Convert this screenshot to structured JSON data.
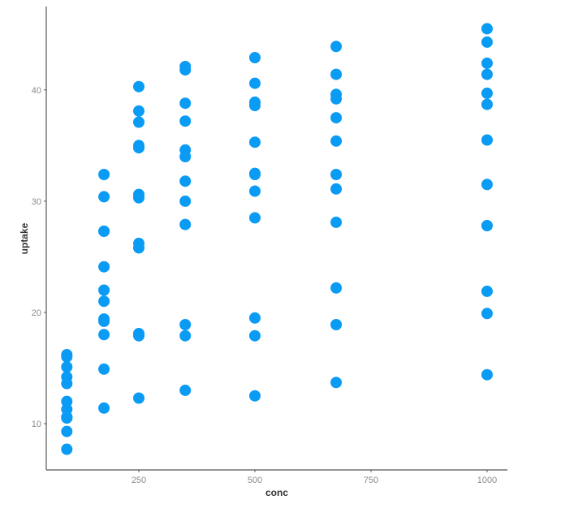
{
  "chart_data": {
    "type": "scatter",
    "title": "",
    "xlabel": "conc",
    "ylabel": "uptake",
    "xlim": [
      50.7,
      1043.7
    ],
    "ylim": [
      5.84,
      47.5
    ],
    "x_ticks": [
      250,
      500,
      750,
      1000
    ],
    "y_ticks": [
      10,
      20,
      30,
      40
    ],
    "grid": false,
    "legend": null,
    "point_color": "#0a9bf5",
    "axis_color": "#555555",
    "tick_label_color": "#8a8a8a",
    "points": [
      {
        "x": 95,
        "y": 16.0
      },
      {
        "x": 95,
        "y": 13.6
      },
      {
        "x": 95,
        "y": 16.2
      },
      {
        "x": 95,
        "y": 14.2
      },
      {
        "x": 95,
        "y": 9.3
      },
      {
        "x": 95,
        "y": 15.1
      },
      {
        "x": 95,
        "y": 10.6
      },
      {
        "x": 95,
        "y": 12.0
      },
      {
        "x": 95,
        "y": 11.3
      },
      {
        "x": 95,
        "y": 10.5
      },
      {
        "x": 95,
        "y": 7.7
      },
      {
        "x": 95,
        "y": 10.6
      },
      {
        "x": 175,
        "y": 30.4
      },
      {
        "x": 175,
        "y": 27.3
      },
      {
        "x": 175,
        "y": 32.4
      },
      {
        "x": 175,
        "y": 24.1
      },
      {
        "x": 175,
        "y": 21.0
      },
      {
        "x": 175,
        "y": 27.3
      },
      {
        "x": 175,
        "y": 19.4
      },
      {
        "x": 175,
        "y": 22.0
      },
      {
        "x": 175,
        "y": 19.2
      },
      {
        "x": 175,
        "y": 11.4
      },
      {
        "x": 175,
        "y": 18.0
      },
      {
        "x": 175,
        "y": 14.9
      },
      {
        "x": 250,
        "y": 34.8
      },
      {
        "x": 250,
        "y": 37.1
      },
      {
        "x": 250,
        "y": 40.3
      },
      {
        "x": 250,
        "y": 30.3
      },
      {
        "x": 250,
        "y": 38.1
      },
      {
        "x": 250,
        "y": 35.0
      },
      {
        "x": 250,
        "y": 25.8
      },
      {
        "x": 250,
        "y": 30.6
      },
      {
        "x": 250,
        "y": 26.2
      },
      {
        "x": 250,
        "y": 12.3
      },
      {
        "x": 250,
        "y": 17.9
      },
      {
        "x": 250,
        "y": 18.1
      },
      {
        "x": 350,
        "y": 37.2
      },
      {
        "x": 350,
        "y": 41.8
      },
      {
        "x": 350,
        "y": 42.1
      },
      {
        "x": 350,
        "y": 34.6
      },
      {
        "x": 350,
        "y": 34.0
      },
      {
        "x": 350,
        "y": 38.8
      },
      {
        "x": 350,
        "y": 27.9
      },
      {
        "x": 350,
        "y": 31.8
      },
      {
        "x": 350,
        "y": 30.0
      },
      {
        "x": 350,
        "y": 13.0
      },
      {
        "x": 350,
        "y": 17.9
      },
      {
        "x": 350,
        "y": 18.9
      },
      {
        "x": 500,
        "y": 35.3
      },
      {
        "x": 500,
        "y": 40.6
      },
      {
        "x": 500,
        "y": 42.9
      },
      {
        "x": 500,
        "y": 32.5
      },
      {
        "x": 500,
        "y": 38.9
      },
      {
        "x": 500,
        "y": 38.6
      },
      {
        "x": 500,
        "y": 28.5
      },
      {
        "x": 500,
        "y": 32.4
      },
      {
        "x": 500,
        "y": 30.9
      },
      {
        "x": 500,
        "y": 12.5
      },
      {
        "x": 500,
        "y": 17.9
      },
      {
        "x": 500,
        "y": 19.5
      },
      {
        "x": 675,
        "y": 39.2
      },
      {
        "x": 675,
        "y": 41.4
      },
      {
        "x": 675,
        "y": 43.9
      },
      {
        "x": 675,
        "y": 35.4
      },
      {
        "x": 675,
        "y": 39.6
      },
      {
        "x": 675,
        "y": 37.5
      },
      {
        "x": 675,
        "y": 28.1
      },
      {
        "x": 675,
        "y": 31.1
      },
      {
        "x": 675,
        "y": 32.4
      },
      {
        "x": 675,
        "y": 13.7
      },
      {
        "x": 675,
        "y": 18.9
      },
      {
        "x": 675,
        "y": 22.2
      },
      {
        "x": 1000,
        "y": 39.7
      },
      {
        "x": 1000,
        "y": 44.3
      },
      {
        "x": 1000,
        "y": 45.5
      },
      {
        "x": 1000,
        "y": 38.7
      },
      {
        "x": 1000,
        "y": 41.4
      },
      {
        "x": 1000,
        "y": 42.4
      },
      {
        "x": 1000,
        "y": 27.8
      },
      {
        "x": 1000,
        "y": 31.5
      },
      {
        "x": 1000,
        "y": 35.5
      },
      {
        "x": 1000,
        "y": 14.4
      },
      {
        "x": 1000,
        "y": 19.9
      },
      {
        "x": 1000,
        "y": 21.9
      }
    ]
  }
}
